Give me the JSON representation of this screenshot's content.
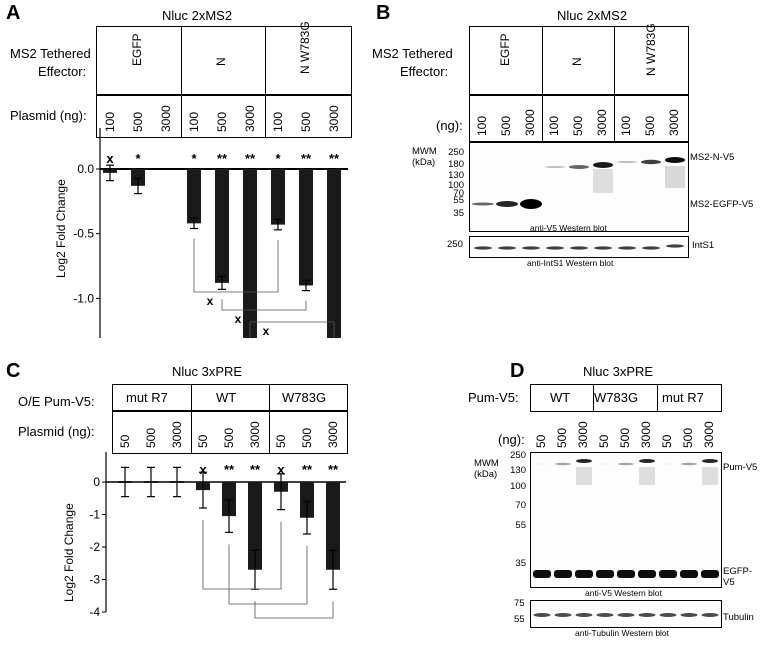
{
  "panels": {
    "A": {
      "letter": "A",
      "title": "Nluc 2xMS2",
      "effector_label_1": "MS2 Tethered",
      "effector_label_2": "Effector:",
      "effectors": [
        "EGFP",
        "N",
        "N W783G"
      ],
      "plasmid_label": "Plasmid (ng):",
      "plasmid_values": [
        "100",
        "500",
        "3000",
        "100",
        "500",
        "3000",
        "100",
        "500",
        "3000"
      ],
      "ylabel": "Log2  Fold Change"
    },
    "B": {
      "letter": "B",
      "title": "Nluc 2xMS2",
      "effector_label_1": "MS2 Tethered",
      "effector_label_2": "Effector:",
      "effectors": [
        "EGFP",
        "N",
        "N W783G"
      ],
      "ng_label": "(ng):",
      "ng_values": [
        "100",
        "500",
        "3000",
        "100",
        "500",
        "3000",
        "100",
        "500",
        "3000"
      ],
      "mwm_label_1": "MWM",
      "mwm_label_2": "(kDa)",
      "mw_ticks": [
        "250",
        "180",
        "130",
        "100",
        "70",
        "55",
        "35"
      ],
      "band_labels": [
        "MS2-N-V5",
        "MS2-EGFP-V5"
      ],
      "blot1_caption": "anti-V5 Western blot",
      "blot2_mw": "250",
      "blot2_band": "IntS1",
      "blot2_caption": "anti-IntS1 Western blot"
    },
    "C": {
      "letter": "C",
      "title": "Nluc 3xPRE",
      "oe_label": "O/E Pum-V5:",
      "groups": [
        "mut R7",
        "WT",
        "W783G"
      ],
      "plasmid_label": "Plasmid (ng):",
      "plasmid_values": [
        "50",
        "500",
        "3000",
        "50",
        "500",
        "3000",
        "50",
        "500",
        "3000"
      ],
      "ylabel": "Log2  Fold Change"
    },
    "D": {
      "letter": "D",
      "title": "Nluc 3xPRE",
      "pum_label": "Pum-V5:",
      "groups": [
        "WT",
        "W783G",
        "mut R7"
      ],
      "ng_label": "(ng):",
      "ng_values": [
        "50",
        "500",
        "3000",
        "50",
        "500",
        "3000",
        "50",
        "500",
        "3000"
      ],
      "mwm_label_1": "MWM",
      "mwm_label_2": "(kDa)",
      "mw_ticks": [
        "250",
        "130",
        "100",
        "70",
        "55",
        "35"
      ],
      "band_labels": [
        "Pum-V5",
        "EGFP-V5"
      ],
      "blot1_caption": "anti-V5 Western blot",
      "blot2_mw": [
        "75",
        "55"
      ],
      "blot2_band": "Tubulin",
      "blot2_caption": "anti-Tubulin Western blot"
    }
  },
  "chart_data": [
    {
      "type": "bar",
      "panel": "A",
      "categories": [
        "EGFP 100",
        "EGFP 500",
        "EGFP 3000",
        "N 100",
        "N 500",
        "N 3000",
        "N W783G 100",
        "N W783G 500",
        "N W783G 3000"
      ],
      "values": [
        -0.03,
        -0.13,
        null,
        -0.42,
        -0.88,
        -1.52,
        -0.43,
        -0.9,
        -1.57
      ],
      "errors": [
        0.06,
        0.06,
        null,
        0.04,
        0.05,
        0.05,
        0.04,
        0.04,
        0.04
      ],
      "significance": [
        "x",
        "*",
        "",
        "*",
        "**",
        "**",
        "*",
        "**",
        "**"
      ],
      "ylim": [
        -2.0,
        0.5
      ],
      "yticks": [
        "0.5",
        "0.0",
        "-0.5",
        "-1.0",
        "-1.5",
        "-2.0"
      ],
      "comparison_marks": [
        "x",
        "x",
        "x"
      ]
    },
    {
      "type": "bar",
      "panel": "C",
      "categories": [
        "mut R7 50",
        "mut R7 500",
        "mut R7 3000",
        "WT 50",
        "WT 500",
        "WT 3000",
        "W783G 50",
        "W783G 500",
        "W783G 3000"
      ],
      "values": [
        0.0,
        0.0,
        0.0,
        -0.25,
        -1.05,
        -2.7,
        -0.3,
        -1.1,
        -2.7
      ],
      "errors": [
        0.45,
        0.45,
        0.45,
        0.55,
        0.5,
        0.6,
        0.55,
        0.5,
        0.6
      ],
      "significance": [
        "",
        "",
        "",
        "x",
        "**",
        "**",
        "x",
        "**",
        "**"
      ],
      "ylim": [
        -4,
        1
      ],
      "yticks": [
        "0",
        "-1",
        "-2",
        "-3",
        "-4"
      ]
    }
  ]
}
